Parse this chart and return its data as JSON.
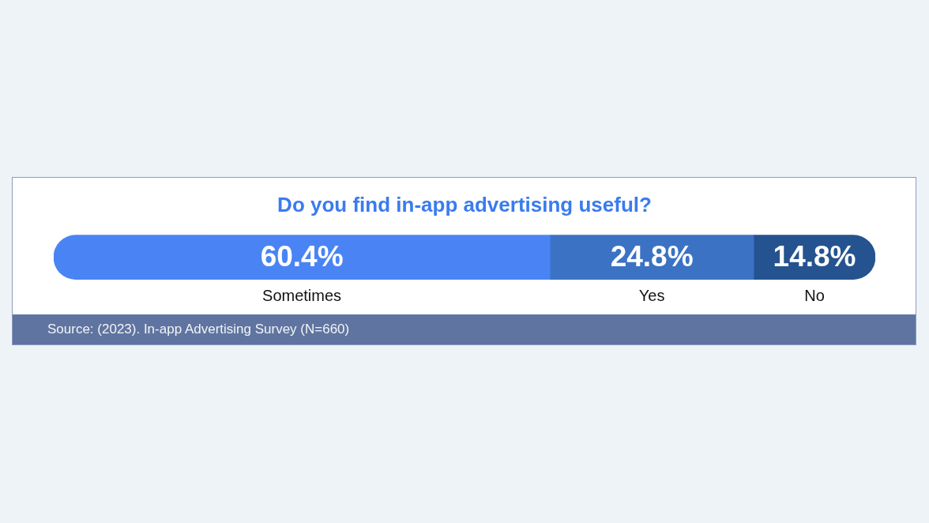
{
  "chart_data": {
    "type": "bar",
    "orientation": "horizontal",
    "stacked": true,
    "title": "Do you find in-app advertising useful?",
    "categories": [
      null
    ],
    "series": [
      {
        "name": "Sometimes",
        "color": "#4a84f4",
        "values": [
          60.4
        ],
        "value_labels": [
          "60.4%"
        ]
      },
      {
        "name": "Yes",
        "color": "#3b72c4",
        "values": [
          24.8
        ],
        "value_labels": [
          "24.8%"
        ]
      },
      {
        "name": "No",
        "color": "#25538f",
        "values": [
          14.8
        ],
        "value_labels": [
          "14.8%"
        ]
      }
    ],
    "xlim": [
      0,
      100
    ],
    "tick_labels": false,
    "grid": false,
    "legend": false,
    "annotations": [
      "Source: (2023). In-app Advertising Survey (N=660)"
    ]
  }
}
